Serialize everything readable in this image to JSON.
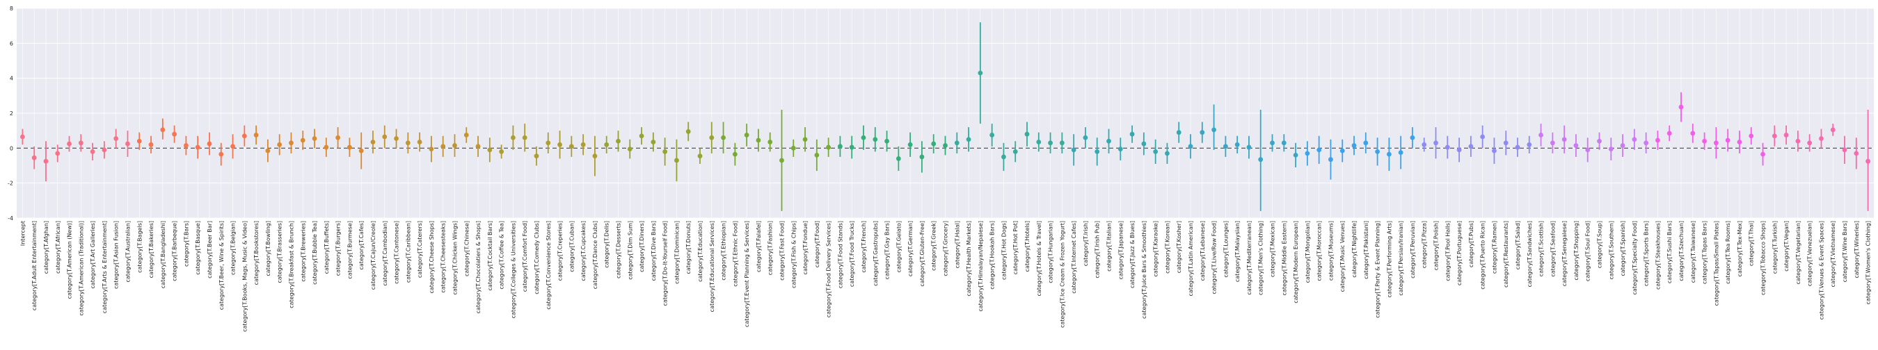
{
  "chart_data": {
    "type": "scatter",
    "ylim": [
      -4,
      8
    ],
    "yticks": [
      -4,
      -2,
      0,
      2,
      4,
      6,
      8
    ],
    "grid": true,
    "reference_line_y": 0,
    "categories": [
      "Intercept",
      "category[T.Adult Entertainment]",
      "category[T.Afghan]",
      "category[T.African]",
      "category[T.American (New)]",
      "category[T.American (Traditional)]",
      "category[T.Art Galleries]",
      "category[T.Arts & Entertainment]",
      "category[T.Asian Fusion]",
      "category[T.Australian]",
      "category[T.Bagels]",
      "category[T.Bakeries]",
      "category[T.Bangladeshi]",
      "category[T.Barbeque]",
      "category[T.Bars]",
      "category[T.Basque]",
      "category[T.Beer Bar]",
      "category[T.Beer, Wine & Spirits]",
      "category[T.Belgian]",
      "category[T.Books, Mags, Music & Video]",
      "category[T.Bookstores]",
      "category[T.Bowling]",
      "category[T.Brasseries]",
      "category[T.Breakfast & Brunch]",
      "category[T.Breweries]",
      "category[T.Bubble Tea]",
      "category[T.Buffets]",
      "category[T.Burgers]",
      "category[T.Burmese]",
      "category[T.Cafes]",
      "category[T.Cajun/Creole]",
      "category[T.Cambodian]",
      "category[T.Cantonese]",
      "category[T.Caribbean]",
      "category[T.Caterers]",
      "category[T.Cheese Shops]",
      "category[T.Cheesesteaks]",
      "category[T.Chicken Wings]",
      "category[T.Chinese]",
      "category[T.Chocolatiers & Shops]",
      "category[T.Cocktail Bars]",
      "category[T.Coffee & Tea]",
      "category[T.Colleges & Universities]",
      "category[T.Comfort Food]",
      "category[T.Comedy Clubs]",
      "category[T.Convenience Stores]",
      "category[T.Creperies]",
      "category[T.Cuban]",
      "category[T.Cupcakes]",
      "category[T.Dance Clubs]",
      "category[T.Delis]",
      "category[T.Desserts]",
      "category[T.Dim Sum]",
      "category[T.Diners]",
      "category[T.Dive Bars]",
      "category[T.Do-It-Yourself Food]",
      "category[T.Dominican]",
      "category[T.Donuts]",
      "category[T.Education]",
      "category[T.Educational Services]",
      "category[T.Ethiopian]",
      "category[T.Ethnic Food]",
      "category[T.Event Planning & Services]",
      "category[T.Falafel]",
      "category[T.Fashion]",
      "category[T.Fast Food]",
      "category[T.Fish & Chips]",
      "category[T.Fondue]",
      "category[T.Food]",
      "category[T.Food Delivery Services]",
      "category[T.Food Stands]",
      "category[T.Food Trucks]",
      "category[T.French]",
      "category[T.Gastropubs]",
      "category[T.Gay Bars]",
      "category[T.Gelato]",
      "category[T.German]",
      "category[T.Gluten-Free]",
      "category[T.Greek]",
      "category[T.Grocery]",
      "category[T.Halal]",
      "category[T.Health Markets]",
      "category[T.Himalayan/Nepalese]",
      "category[T.Hookah Bars]",
      "category[T.Hot Dogs]",
      "category[T.Hot Pot]",
      "category[T.Hotels]",
      "category[T.Hotels & Travel]",
      "category[T.Hungarian]",
      "category[T.Ice Cream & Frozen Yogurt]",
      "category[T.Internet Cafes]",
      "category[T.Irish]",
      "category[T.Irish Pub]",
      "category[T.Italian]",
      "category[T.Japanese]",
      "category[T.Jazz & Blues]",
      "category[T.Juice Bars & Smoothies]",
      "category[T.Karaoke]",
      "category[T.Korean]",
      "category[T.Kosher]",
      "category[T.Latin American]",
      "category[T.Lebanese]",
      "category[T.Live/Raw Food]",
      "category[T.Lounges]",
      "category[T.Malaysian]",
      "category[T.Mediterranean]",
      "category[T.Men's Clothing]",
      "category[T.Mexican]",
      "category[T.Middle Eastern]",
      "category[T.Modern European]",
      "category[T.Mongolian]",
      "category[T.Moroccan]",
      "category[T.Museums]",
      "category[T.Music Venues]",
      "category[T.Nightlife]",
      "category[T.Pakistani]",
      "category[T.Party & Event Planning]",
      "category[T.Performing Arts]",
      "category[T.Persian/Iranian]",
      "category[T.Peruvian]",
      "category[T.Pizza]",
      "category[T.Polish]",
      "category[T.Pool Halls]",
      "category[T.Portuguese]",
      "category[T.Pubs]",
      "category[T.Puerto Rican]",
      "category[T.Ramen]",
      "category[T.Restaurants]",
      "category[T.Salad]",
      "category[T.Sandwiches]",
      "category[T.Scottish]",
      "category[T.Seafood]",
      "category[T.Senegalese]",
      "category[T.Shopping]",
      "category[T.Soul Food]",
      "category[T.Soup]",
      "category[T.Southern]",
      "category[T.Spanish]",
      "category[T.Specialty Food]",
      "category[T.Sports Bars]",
      "category[T.Steakhouses]",
      "category[T.Sushi Bars]",
      "category[T.Szechuan]",
      "category[T.Taiwanese]",
      "category[T.Tapas Bars]",
      "category[T.Tapas/Small Plates]",
      "category[T.Tea Rooms]",
      "category[T.Tex-Mex]",
      "category[T.Thai]",
      "category[T.Tobacco Shops]",
      "category[T.Turkish]",
      "category[T.Vegan]",
      "category[T.Vegetarian]",
      "category[T.Venezuelan]",
      "category[T.Venues & Event Spaces]",
      "category[T.Vietnamese]",
      "category[T.Wine Bars]",
      "category[T.Wineries]",
      "category[T.Women's Clothing]"
    ],
    "values": [
      0.65,
      -0.55,
      -0.75,
      -0.3,
      0.25,
      0.3,
      -0.2,
      -0.1,
      0.55,
      0.25,
      0.4,
      0.2,
      1.05,
      0.8,
      0.15,
      0.05,
      0.25,
      -0.35,
      0.1,
      0.7,
      0.75,
      -0.15,
      0.2,
      0.3,
      0.45,
      0.55,
      0.05,
      0.6,
      0.05,
      -0.15,
      0.35,
      0.65,
      0.55,
      0.3,
      0.35,
      -0.05,
      0.1,
      0.15,
      0.75,
      0.1,
      -0.1,
      -0.2,
      0.6,
      0.6,
      -0.45,
      0.3,
      0.2,
      0.1,
      0.2,
      -0.45,
      0.2,
      0.4,
      -0.05,
      0.7,
      0.35,
      -0.2,
      -0.7,
      0.95,
      -0.45,
      0.6,
      0.6,
      -0.35,
      0.75,
      0.45,
      0.35,
      -0.7,
      0.0,
      0.5,
      -0.4,
      0.05,
      0.1,
      0.05,
      0.6,
      0.5,
      0.4,
      -0.6,
      0.2,
      -0.5,
      0.25,
      0.15,
      0.3,
      0.5,
      4.3,
      0.75,
      -0.5,
      -0.2,
      0.8,
      0.35,
      0.3,
      0.3,
      -0.1,
      0.6,
      -0.2,
      0.4,
      -0.05,
      0.8,
      0.25,
      -0.2,
      -0.3,
      0.9,
      0.1,
      0.9,
      1.05,
      0.1,
      0.2,
      0.05,
      -0.65,
      0.3,
      0.3,
      -0.4,
      -0.3,
      -0.1,
      -0.65,
      -0.15,
      0.15,
      0.3,
      -0.2,
      -0.35,
      -0.25,
      0.6,
      0.2,
      0.3,
      0.05,
      -0.1,
      0.1,
      0.65,
      -0.15,
      0.3,
      0.05,
      0.2,
      0.75,
      0.3,
      0.5,
      0.15,
      -0.1,
      0.4,
      -0.05,
      0.15,
      0.5,
      0.3,
      0.45,
      0.85,
      2.35,
      0.85,
      0.4,
      0.3,
      0.45,
      0.35,
      0.7,
      -0.35,
      0.7,
      0.75,
      0.4,
      0.3,
      0.55,
      1.05,
      -0.1,
      -0.3,
      -0.75
    ],
    "ci_lower": [
      0.2,
      -1.2,
      -1.9,
      -0.8,
      -0.2,
      -0.2,
      -0.7,
      -0.6,
      0.0,
      -0.5,
      -0.1,
      -0.3,
      0.5,
      0.3,
      -0.4,
      -0.6,
      -0.4,
      -1.0,
      -0.6,
      0.1,
      0.2,
      -0.8,
      -0.4,
      -0.3,
      -0.1,
      0.0,
      -0.5,
      0.0,
      -0.5,
      -1.2,
      -0.3,
      0.0,
      0.0,
      -0.3,
      -0.2,
      -0.8,
      -0.5,
      -0.5,
      0.3,
      -0.5,
      -0.8,
      -0.6,
      -0.1,
      -0.2,
      -1.0,
      -0.3,
      -0.6,
      -0.5,
      -0.4,
      -1.6,
      -0.3,
      -0.2,
      -0.6,
      0.2,
      -0.2,
      -1.0,
      -1.9,
      0.4,
      -0.9,
      -0.3,
      -0.3,
      -1.0,
      0.1,
      -0.2,
      -0.2,
      -3.6,
      -0.5,
      -0.2,
      -1.3,
      -0.5,
      -0.5,
      -0.6,
      -0.1,
      -0.2,
      -0.2,
      -1.3,
      -0.5,
      -1.4,
      -0.3,
      -0.4,
      -0.3,
      -0.2,
      1.4,
      0.1,
      -1.3,
      -0.8,
      0.1,
      -0.2,
      -0.3,
      -0.3,
      -1.0,
      0.0,
      -1.0,
      -0.3,
      -0.7,
      0.3,
      -0.4,
      -0.9,
      -0.9,
      0.3,
      -0.6,
      0.3,
      -0.1,
      -0.5,
      -0.3,
      -0.6,
      -3.6,
      -0.2,
      -0.2,
      -1.1,
      -1.0,
      -0.9,
      -1.8,
      -0.8,
      -0.4,
      -0.3,
      -1.0,
      -1.3,
      -1.2,
      0.0,
      -0.2,
      -0.6,
      -0.6,
      -0.8,
      -0.5,
      0.0,
      -0.9,
      -0.4,
      -0.5,
      -0.3,
      0.1,
      -0.3,
      -0.3,
      -0.5,
      -0.8,
      -0.1,
      -0.7,
      -0.5,
      -0.1,
      -0.3,
      -0.1,
      0.4,
      1.5,
      0.3,
      -0.1,
      -0.6,
      -0.2,
      -0.3,
      0.2,
      -1.0,
      0.1,
      0.2,
      -0.2,
      -0.2,
      0.0,
      0.7,
      -0.9,
      -1.2,
      -3.6
    ],
    "ci_upper": [
      1.1,
      0.1,
      0.4,
      0.2,
      0.7,
      0.8,
      0.3,
      0.4,
      1.1,
      1.0,
      0.9,
      0.7,
      1.7,
      1.3,
      0.7,
      0.7,
      0.9,
      0.3,
      0.8,
      1.3,
      1.3,
      0.5,
      0.8,
      0.9,
      1.0,
      1.1,
      0.6,
      1.2,
      0.6,
      0.9,
      1.0,
      1.3,
      1.1,
      0.9,
      0.9,
      0.7,
      0.7,
      0.8,
      1.2,
      0.7,
      0.6,
      0.2,
      1.3,
      1.4,
      0.1,
      0.9,
      1.0,
      0.7,
      0.8,
      0.7,
      0.7,
      1.0,
      0.5,
      1.2,
      0.9,
      0.6,
      0.5,
      1.5,
      0.0,
      1.5,
      1.5,
      0.3,
      1.4,
      1.1,
      0.9,
      2.2,
      0.5,
      1.2,
      0.5,
      0.6,
      0.7,
      0.7,
      1.3,
      1.2,
      1.0,
      0.1,
      0.9,
      0.4,
      0.8,
      0.7,
      0.9,
      1.2,
      7.2,
      1.4,
      0.3,
      0.4,
      1.5,
      0.9,
      0.9,
      0.9,
      0.8,
      1.2,
      0.6,
      1.1,
      0.6,
      1.3,
      0.9,
      0.5,
      0.3,
      1.5,
      0.8,
      1.5,
      2.5,
      0.7,
      0.7,
      0.7,
      2.2,
      0.8,
      0.8,
      0.3,
      0.4,
      0.7,
      0.5,
      0.5,
      0.7,
      0.9,
      0.6,
      0.6,
      0.7,
      1.2,
      0.6,
      1.2,
      0.7,
      0.6,
      0.7,
      1.3,
      0.6,
      1.0,
      0.6,
      0.7,
      1.4,
      0.9,
      1.3,
      0.8,
      0.6,
      0.9,
      0.6,
      0.8,
      1.1,
      0.9,
      1.0,
      1.3,
      3.2,
      1.4,
      0.9,
      1.2,
      1.1,
      1.0,
      1.2,
      0.3,
      1.3,
      1.3,
      1.0,
      0.8,
      1.1,
      1.4,
      0.7,
      0.6,
      2.2
    ],
    "colors": [
      "#f77189",
      "#f7754f",
      "#dc8932",
      "#c39532",
      "#ae9d31",
      "#97a431",
      "#77ab31",
      "#33b07a",
      "#35ac9c",
      "#36a9b0",
      "#38a6c5",
      "#3ba3ec",
      "#8e8cf4",
      "#cc7af4",
      "#f45deb",
      "#f66bad"
    ]
  }
}
